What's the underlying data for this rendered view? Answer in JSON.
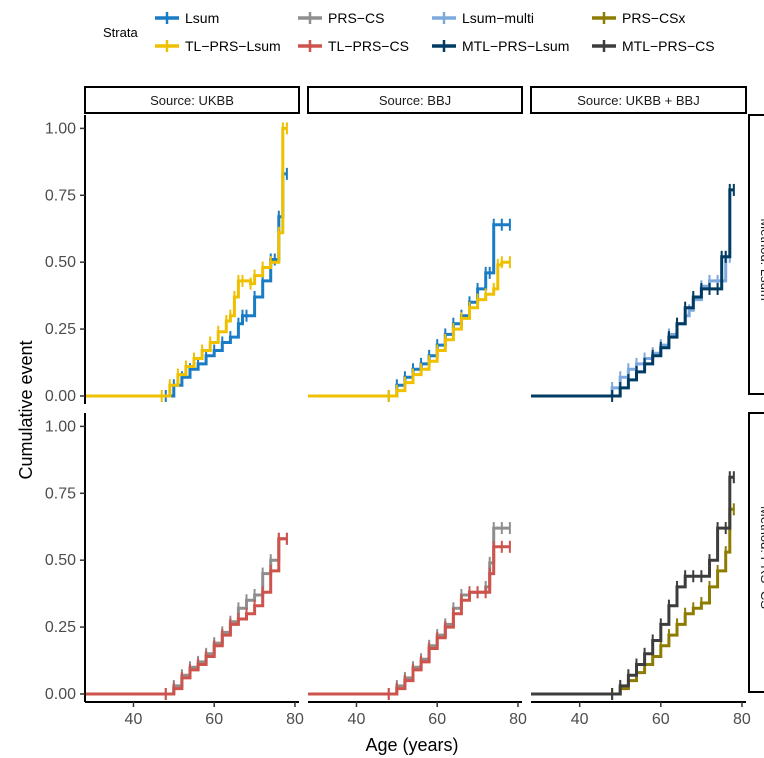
{
  "legend": {
    "title": "Strata",
    "items": [
      {
        "label": "Lsum",
        "color": "#1A7CC4"
      },
      {
        "label": "PRS−CS",
        "color": "#8F8F8F"
      },
      {
        "label": "Lsum−multi",
        "color": "#7EA9DD"
      },
      {
        "label": "PRS−CSx",
        "color": "#8E7C00"
      },
      {
        "label": "TL−PRS−Lsum",
        "color": "#EFC000"
      },
      {
        "label": "TL−PRS−CS",
        "color": "#CD534C"
      },
      {
        "label": "MTL−PRS−Lsum",
        "color": "#003B63"
      },
      {
        "label": "MTL−PRS−CS",
        "color": "#3D3D3D"
      }
    ]
  },
  "chart_data": {
    "type": "line",
    "subtype": "step (Kaplan-Meier cumulative event, faceted)",
    "xlabel": "Age (years)",
    "ylabel": "Cumulative event",
    "xlim": [
      28,
      81
    ],
    "ylim": [
      -0.03,
      1.05
    ],
    "xticks": [
      40,
      60,
      80
    ],
    "yticks": [
      0.0,
      0.25,
      0.5,
      0.75,
      1.0
    ],
    "ytick_labels": [
      "0.00",
      "0.25",
      "0.50",
      "0.75",
      "1.00"
    ],
    "col_facets": [
      "Source: UKBB",
      "Source: BBJ",
      "Source: UKBB + BBJ"
    ],
    "row_facets": [
      "Method: Lsum",
      "Method: PRS−CS"
    ],
    "panels": [
      {
        "row": 0,
        "col": 0,
        "series": [
          {
            "name": "Lsum",
            "x": [
              28,
              48,
              50,
              52,
              54,
              56,
              58,
              60,
              62,
              64,
              66,
              67,
              68,
              70,
              72,
              74,
              75,
              76,
              77,
              78
            ],
            "y": [
              0,
              0,
              0.04,
              0.07,
              0.1,
              0.12,
              0.15,
              0.17,
              0.2,
              0.22,
              0.27,
              0.3,
              0.3,
              0.37,
              0.43,
              0.51,
              0.51,
              0.67,
              0.83,
              0.83
            ]
          },
          {
            "name": "TL−PRS−Lsum",
            "x": [
              28,
              47,
              49,
              51,
              53,
              55,
              57,
              59,
              61,
              63,
              64,
              65,
              66,
              67,
              69,
              70,
              72,
              74,
              76,
              77,
              78
            ],
            "y": [
              0,
              0,
              0.04,
              0.08,
              0.11,
              0.14,
              0.17,
              0.2,
              0.24,
              0.28,
              0.3,
              0.37,
              0.43,
              0.43,
              0.42,
              0.45,
              0.48,
              0.5,
              0.61,
              1.0,
              1.0
            ]
          }
        ]
      },
      {
        "row": 0,
        "col": 1,
        "series": [
          {
            "name": "Lsum",
            "x": [
              28,
              48,
              50,
              52,
              54,
              56,
              58,
              60,
              62,
              64,
              66,
              68,
              70,
              72,
              73,
              74,
              76,
              78
            ],
            "y": [
              0,
              0,
              0.04,
              0.07,
              0.1,
              0.12,
              0.15,
              0.19,
              0.23,
              0.27,
              0.3,
              0.35,
              0.4,
              0.46,
              0.46,
              0.64,
              0.64,
              0.64
            ]
          },
          {
            "name": "TL−PRS−Lsum",
            "x": [
              28,
              48,
              50,
              52,
              54,
              56,
              58,
              60,
              62,
              64,
              66,
              68,
              70,
              72,
              74,
              75,
              76,
              78
            ],
            "y": [
              0,
              0,
              0.02,
              0.05,
              0.08,
              0.1,
              0.13,
              0.17,
              0.21,
              0.25,
              0.29,
              0.33,
              0.36,
              0.38,
              0.4,
              0.49,
              0.5,
              0.5
            ]
          }
        ]
      },
      {
        "row": 0,
        "col": 2,
        "series": [
          {
            "name": "Lsum−multi",
            "x": [
              28,
              46,
              48,
              50,
              52,
              54,
              56,
              58,
              60,
              62,
              64,
              66,
              67,
              68,
              70,
              72,
              74,
              75,
              76,
              77
            ],
            "y": [
              0,
              0,
              0.03,
              0.07,
              0.1,
              0.12,
              0.14,
              0.16,
              0.19,
              0.23,
              0.27,
              0.3,
              0.32,
              0.36,
              0.41,
              0.43,
              0.43,
              0.43,
              0.52,
              0.52
            ]
          },
          {
            "name": "MTL−PRS−Lsum",
            "x": [
              28,
              48,
              50,
              52,
              54,
              56,
              58,
              60,
              62,
              64,
              66,
              68,
              70,
              72,
              74,
              75,
              76,
              77,
              78
            ],
            "y": [
              0,
              0,
              0.03,
              0.06,
              0.09,
              0.12,
              0.15,
              0.18,
              0.22,
              0.27,
              0.33,
              0.37,
              0.4,
              0.4,
              0.4,
              0.52,
              0.52,
              0.77,
              0.77
            ]
          }
        ]
      },
      {
        "row": 1,
        "col": 0,
        "series": [
          {
            "name": "PRS−CS",
            "x": [
              28,
              48,
              50,
              52,
              54,
              56,
              58,
              60,
              62,
              64,
              66,
              68,
              70,
              72,
              74,
              76,
              78
            ],
            "y": [
              0,
              0,
              0.03,
              0.07,
              0.1,
              0.12,
              0.15,
              0.19,
              0.23,
              0.27,
              0.32,
              0.35,
              0.37,
              0.45,
              0.5,
              0.58,
              0.58
            ]
          },
          {
            "name": "TL−PRS−CS",
            "x": [
              28,
              48,
              50,
              52,
              54,
              56,
              58,
              60,
              62,
              64,
              66,
              68,
              70,
              72,
              74,
              76,
              78
            ],
            "y": [
              0,
              0,
              0.02,
              0.06,
              0.09,
              0.11,
              0.14,
              0.18,
              0.22,
              0.26,
              0.28,
              0.3,
              0.33,
              0.38,
              0.46,
              0.58,
              0.58
            ]
          }
        ]
      },
      {
        "row": 1,
        "col": 1,
        "series": [
          {
            "name": "PRS−CS",
            "x": [
              28,
              48,
              50,
              52,
              54,
              56,
              58,
              60,
              62,
              64,
              66,
              68,
              70,
              72,
              73,
              74,
              76,
              78
            ],
            "y": [
              0,
              0,
              0.03,
              0.06,
              0.1,
              0.13,
              0.18,
              0.22,
              0.26,
              0.32,
              0.37,
              0.38,
              0.38,
              0.4,
              0.49,
              0.62,
              0.62,
              0.62
            ]
          },
          {
            "name": "TL−PRS−CS",
            "x": [
              28,
              48,
              50,
              52,
              54,
              56,
              58,
              60,
              62,
              64,
              66,
              68,
              70,
              72,
              73,
              74,
              76,
              78
            ],
            "y": [
              0,
              0,
              0.02,
              0.05,
              0.09,
              0.12,
              0.17,
              0.21,
              0.25,
              0.3,
              0.35,
              0.38,
              0.38,
              0.38,
              0.45,
              0.55,
              0.55,
              0.55
            ]
          }
        ]
      },
      {
        "row": 1,
        "col": 2,
        "series": [
          {
            "name": "PRS−CSx",
            "x": [
              28,
              48,
              50,
              52,
              54,
              56,
              58,
              60,
              62,
              64,
              66,
              68,
              70,
              72,
              74,
              76,
              77,
              78
            ],
            "y": [
              0,
              0,
              0.02,
              0.05,
              0.08,
              0.11,
              0.14,
              0.18,
              0.22,
              0.26,
              0.3,
              0.32,
              0.34,
              0.4,
              0.46,
              0.53,
              0.69,
              0.69
            ]
          },
          {
            "name": "MTL−PRS−CS",
            "x": [
              28,
              48,
              50,
              52,
              54,
              56,
              58,
              60,
              62,
              64,
              66,
              68,
              70,
              72,
              74,
              76,
              77,
              78
            ],
            "y": [
              0,
              0,
              0.03,
              0.07,
              0.11,
              0.15,
              0.2,
              0.26,
              0.33,
              0.4,
              0.44,
              0.44,
              0.44,
              0.5,
              0.62,
              0.62,
              0.81,
              0.81
            ]
          }
        ]
      }
    ]
  }
}
